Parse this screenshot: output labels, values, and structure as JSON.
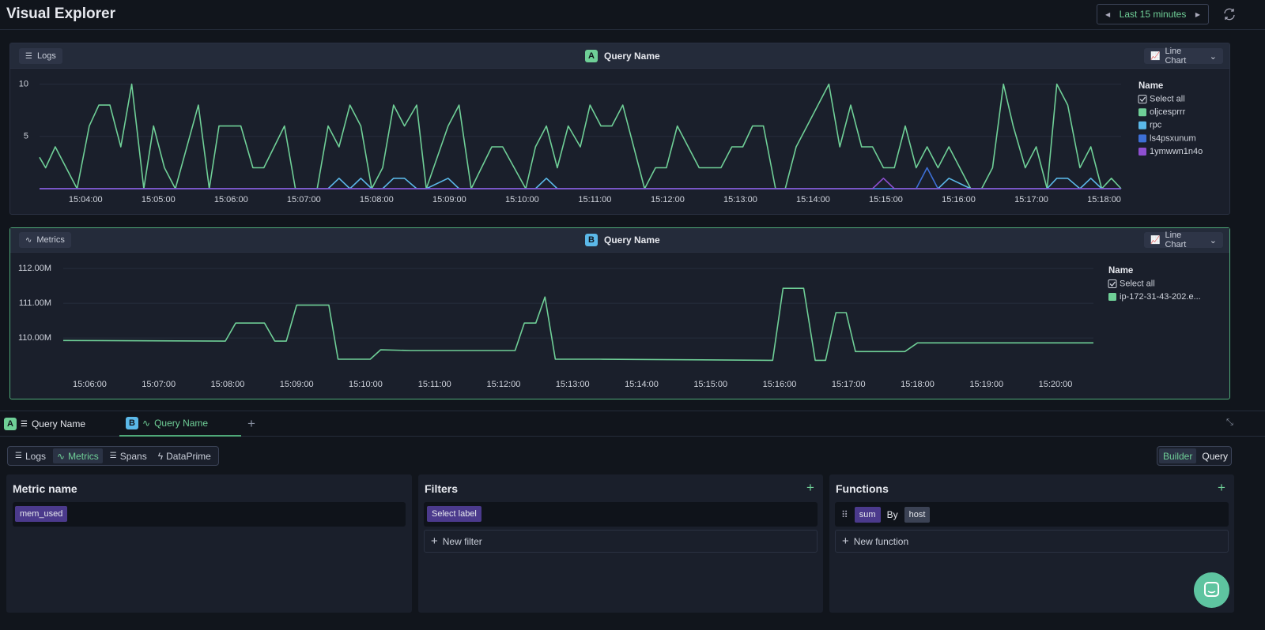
{
  "header": {
    "title": "Visual Explorer",
    "time_range": "Last 15 minutes"
  },
  "panels": [
    {
      "source": "Logs",
      "query_badge": "A",
      "query_name": "Query Name",
      "chart_type": "Line Chart",
      "legend_title": "Name",
      "select_all": "Select all"
    },
    {
      "source": "Metrics",
      "query_badge": "B",
      "query_name": "Query Name",
      "chart_type": "Line Chart",
      "legend_title": "Name",
      "select_all": "Select all"
    }
  ],
  "chart_data": [
    {
      "type": "line",
      "x": [
        "15:03:22",
        "15:03:27",
        "15:03:35",
        "15:03:53",
        "15:04:03",
        "15:04:11",
        "15:04:20",
        "15:04:29",
        "15:04:38",
        "15:04:48",
        "15:04:56",
        "15:05:05",
        "15:05:14",
        "15:05:33",
        "15:05:42",
        "15:05:50",
        "15:06:08",
        "15:06:18",
        "15:06:27",
        "15:06:44",
        "15:06:53",
        "15:07:11",
        "15:07:20",
        "15:07:29",
        "15:07:38",
        "15:07:47",
        "15:07:56",
        "15:08:05",
        "15:08:14",
        "15:08:23",
        "15:08:33",
        "15:08:41",
        "15:08:59",
        "15:09:08",
        "15:09:18",
        "15:09:35",
        "15:09:44",
        "15:10:03",
        "15:10:11",
        "15:10:20",
        "15:10:29",
        "15:10:38",
        "15:10:48",
        "15:10:56",
        "15:11:05",
        "15:11:14",
        "15:11:23",
        "15:11:41",
        "15:11:50",
        "15:11:59",
        "15:12:08",
        "15:12:26",
        "15:12:44",
        "15:12:53",
        "15:13:02",
        "15:13:10",
        "15:13:19",
        "15:13:29",
        "15:13:37",
        "15:13:46",
        "15:13:55",
        "15:14:13",
        "15:14:22",
        "15:14:31",
        "15:14:40",
        "15:14:49",
        "15:14:58",
        "15:15:07",
        "15:15:16",
        "15:15:25",
        "15:15:34",
        "15:15:43",
        "15:15:52",
        "15:16:10",
        "15:16:19",
        "15:16:28",
        "15:16:37",
        "15:16:45",
        "15:16:55",
        "15:17:04",
        "15:17:13",
        "15:17:21",
        "15:17:30",
        "15:17:40",
        "15:17:49",
        "15:17:58",
        "15:18:06",
        "15:18:14"
      ],
      "series": [
        {
          "name": "oljcesprrr",
          "color": "#6fcf97",
          "values": [
            3,
            2,
            4,
            0,
            6,
            8,
            8,
            4,
            10,
            0,
            6,
            2,
            0,
            8,
            0,
            6,
            6,
            2,
            2,
            6,
            0,
            0,
            6,
            4,
            8,
            6,
            0,
            2,
            8,
            6,
            8,
            0,
            6,
            8,
            0,
            4,
            4,
            0,
            4,
            6,
            2,
            6,
            4,
            8,
            6,
            6,
            8,
            0,
            2,
            2,
            6,
            2,
            2,
            4,
            4,
            6,
            6,
            0,
            0,
            4,
            6,
            10,
            4,
            8,
            4,
            4,
            2,
            2,
            6,
            2,
            4,
            2,
            4,
            0,
            0,
            2,
            10,
            6,
            2,
            4,
            0,
            10,
            8,
            2,
            4,
            0,
            1,
            0
          ]
        },
        {
          "name": "rpc",
          "color": "#5bb8e8",
          "values": [
            0,
            0,
            0,
            0,
            0,
            0,
            0,
            0,
            0,
            0,
            0,
            0,
            0,
            0,
            0,
            0,
            0,
            0,
            0,
            0,
            0,
            0,
            0,
            1,
            0,
            1,
            0,
            0,
            1,
            1,
            0,
            0,
            1,
            0,
            0,
            0,
            0,
            0,
            0,
            1,
            0,
            0,
            0,
            0,
            0,
            0,
            0,
            0,
            0,
            0,
            0,
            0,
            0,
            0,
            0,
            0,
            0,
            0,
            0,
            0,
            0,
            0,
            0,
            0,
            0,
            0,
            0,
            0,
            0,
            0,
            0,
            0,
            1,
            0,
            0,
            0,
            0,
            0,
            0,
            0,
            0,
            1,
            1,
            0,
            1,
            0,
            0,
            0
          ]
        },
        {
          "name": "ls4psxunum",
          "color": "#3d6fd6",
          "values": [
            0,
            0,
            0,
            0,
            0,
            0,
            0,
            0,
            0,
            0,
            0,
            0,
            0,
            0,
            0,
            0,
            0,
            0,
            0,
            0,
            0,
            0,
            0,
            0,
            0,
            0,
            0,
            0,
            0,
            0,
            0,
            0,
            0,
            0,
            0,
            0,
            0,
            0,
            0,
            0,
            0,
            0,
            0,
            0,
            0,
            0,
            0,
            0,
            0,
            0,
            0,
            0,
            0,
            0,
            0,
            0,
            0,
            0,
            0,
            0,
            0,
            0,
            0,
            0,
            0,
            0,
            0,
            0,
            0,
            0,
            2,
            0,
            0,
            0,
            0,
            0,
            0,
            0,
            0,
            0,
            0,
            0,
            0,
            0,
            0,
            0,
            0,
            0
          ]
        },
        {
          "name": "1ymwwn1n4o",
          "color": "#8e4fd0",
          "values": [
            0,
            0,
            0,
            0,
            0,
            0,
            0,
            0,
            0,
            0,
            0,
            0,
            0,
            0,
            0,
            0,
            0,
            0,
            0,
            0,
            0,
            0,
            0,
            0,
            0,
            0,
            0,
            0,
            0,
            0,
            0,
            0,
            0,
            0,
            0,
            0,
            0,
            0,
            0,
            0,
            0,
            0,
            0,
            0,
            0,
            0,
            0,
            0,
            0,
            0,
            0,
            0,
            0,
            0,
            0,
            0,
            0,
            0,
            0,
            0,
            0,
            0,
            0,
            0,
            0,
            0,
            1,
            0,
            0,
            0,
            0,
            0,
            0,
            0,
            0,
            0,
            0,
            0,
            0,
            0,
            0,
            0,
            0,
            0,
            0,
            0,
            0,
            0
          ]
        }
      ],
      "xlim": [
        "15:03:22",
        "15:18:14"
      ],
      "xticks": [
        "15:04:00",
        "15:05:00",
        "15:06:00",
        "15:07:00",
        "15:08:00",
        "15:09:00",
        "15:10:00",
        "15:11:00",
        "15:12:00",
        "15:13:00",
        "15:14:00",
        "15:15:00",
        "15:16:00",
        "15:17:00",
        "15:18:00"
      ],
      "ylim": [
        0,
        10.5
      ],
      "yticks": [
        5,
        10
      ],
      "grid": true
    },
    {
      "type": "line",
      "x": [
        "15:05:37",
        "15:07:58",
        "15:08:07",
        "15:08:32",
        "15:08:41",
        "15:08:51",
        "15:09:00",
        "15:09:28",
        "15:09:36",
        "15:10:04",
        "15:10:13",
        "15:10:39",
        "15:12:10",
        "15:12:18",
        "15:12:28",
        "15:12:36",
        "15:12:45",
        "15:13:24",
        "15:15:54",
        "15:16:03",
        "15:16:21",
        "15:16:31",
        "15:16:40",
        "15:16:49",
        "15:16:58",
        "15:17:06",
        "15:17:49",
        "15:18:00",
        "15:20:33"
      ],
      "series": [
        {
          "name": "ip-172-31-43-202.e...",
          "color": "#6fcf97",
          "values": [
            109930000,
            109910000,
            110430000,
            110430000,
            109910000,
            109910000,
            110950000,
            110950000,
            109390000,
            109390000,
            109660000,
            109640000,
            109640000,
            110430000,
            110430000,
            111180000,
            109390000,
            109390000,
            109360000,
            111430000,
            111430000,
            109360000,
            109360000,
            110730000,
            110730000,
            109610000,
            109610000,
            109860000,
            109860000
          ]
        }
      ],
      "xlim": [
        "15:05:37",
        "15:20:33"
      ],
      "xticks": [
        "15:06:00",
        "15:07:00",
        "15:08:00",
        "15:09:00",
        "15:10:00",
        "15:11:00",
        "15:12:00",
        "15:13:00",
        "15:14:00",
        "15:15:00",
        "15:16:00",
        "15:17:00",
        "15:18:00",
        "15:19:00",
        "15:20:00"
      ],
      "ylim": [
        109050000,
        112230000
      ],
      "yticks": [
        {
          "value": 110000000,
          "label": "110.00M"
        },
        {
          "value": 111000000,
          "label": "111.00M"
        },
        {
          "value": 112000000,
          "label": "112.00M"
        }
      ],
      "grid": true
    }
  ],
  "query_tabs": [
    {
      "badge": "A",
      "name": "Query Name"
    },
    {
      "badge": "B",
      "name": "Query Name"
    }
  ],
  "source_tabs": [
    "Logs",
    "Metrics",
    "Spans",
    "DataPrime"
  ],
  "mode_tabs": [
    "Builder",
    "Query"
  ],
  "metric_name": {
    "title": "Metric name",
    "value": "mem_used"
  },
  "filters": {
    "title": "Filters",
    "select": "Select label",
    "add": "New filter"
  },
  "functions": {
    "title": "Functions",
    "func": "sum",
    "by": "By",
    "group": "host",
    "add": "New function"
  }
}
